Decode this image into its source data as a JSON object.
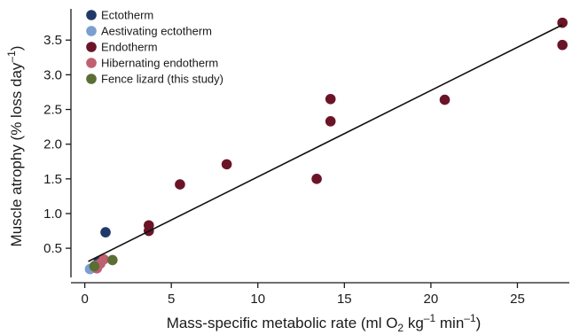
{
  "chart_data": {
    "type": "scatter",
    "xlabel": {
      "prefix": "Mass-specific metabolic rate (ml O",
      "sub": "2",
      "mid": " kg",
      "sup1": "–1",
      "mid2": " min",
      "sup2": "–1",
      "suffix": ")"
    },
    "ylabel": {
      "prefix": "Muscle atrophy (% loss day",
      "sup": "–1",
      "suffix": ")"
    },
    "xlim": [
      -0.8,
      28
    ],
    "ylim": [
      0.08,
      3.95
    ],
    "xticks": [
      0,
      5,
      10,
      15,
      20,
      25
    ],
    "xtick_labels": [
      "0",
      "5",
      "10",
      "15",
      "20",
      "25"
    ],
    "yticks": [
      0.5,
      1.0,
      1.5,
      2.0,
      2.5,
      3.0,
      3.5
    ],
    "ytick_labels": [
      "0.5",
      "1.0",
      "1.5",
      "2.0",
      "2.5",
      "3.0",
      "3.5"
    ],
    "grid": false,
    "legend_position": "top-left",
    "series": [
      {
        "name": "Ectotherm",
        "color": "#1f3a68",
        "points": [
          [
            1.2,
            0.73
          ],
          [
            0.8,
            0.31
          ]
        ]
      },
      {
        "name": "Aestivating ectotherm",
        "color": "#7a9fd0",
        "points": [
          [
            0.3,
            0.2
          ],
          [
            0.55,
            0.22
          ],
          [
            0.75,
            0.24
          ]
        ]
      },
      {
        "name": "Endotherm",
        "color": "#6b1428",
        "points": [
          [
            3.7,
            0.83
          ],
          [
            3.7,
            0.75
          ],
          [
            5.5,
            1.42
          ],
          [
            8.2,
            1.71
          ],
          [
            13.4,
            1.5
          ],
          [
            14.2,
            2.65
          ],
          [
            14.2,
            2.33
          ],
          [
            20.8,
            2.64
          ],
          [
            27.6,
            3.75
          ],
          [
            27.6,
            3.43
          ]
        ]
      },
      {
        "name": "Hibernating endotherm",
        "color": "#c06070",
        "points": [
          [
            0.7,
            0.21
          ],
          [
            0.9,
            0.28
          ],
          [
            1.1,
            0.34
          ],
          [
            0.6,
            0.25
          ]
        ]
      },
      {
        "name": "Fence lizard (this study)",
        "color": "#5a6e35",
        "points": [
          [
            0.55,
            0.24
          ],
          [
            1.6,
            0.33
          ]
        ]
      }
    ],
    "regression_line": {
      "x": [
        0.2,
        27.6
      ],
      "y": [
        0.31,
        3.72
      ],
      "color": "#111111"
    }
  }
}
